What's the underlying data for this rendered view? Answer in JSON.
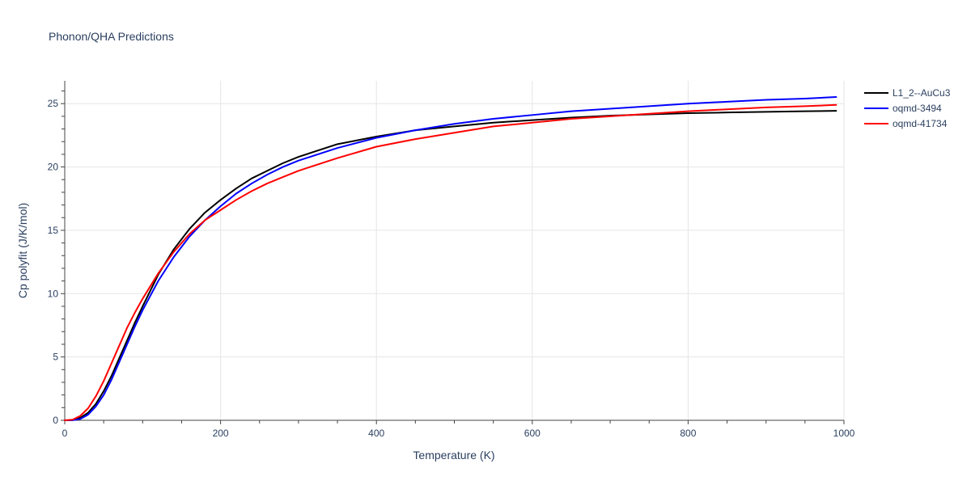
{
  "chart_data": {
    "type": "line",
    "title": "Phonon/QHA Predictions",
    "xlabel": "Temperature (K)",
    "ylabel": "Cp polyfit (J/K/mol)",
    "xlim": [
      0,
      1000
    ],
    "ylim": [
      0,
      26.8
    ],
    "xticks": [
      0,
      200,
      400,
      600,
      800,
      1000
    ],
    "yticks": [
      0,
      5,
      10,
      15,
      20,
      25
    ],
    "grid": true,
    "legend_position": "top-right",
    "series": [
      {
        "name": "L1_2--AuCu3",
        "color": "#000000",
        "x": [
          0,
          10,
          20,
          30,
          40,
          50,
          60,
          70,
          80,
          90,
          100,
          120,
          140,
          160,
          180,
          200,
          220,
          240,
          260,
          280,
          300,
          350,
          400,
          450,
          500,
          550,
          600,
          650,
          700,
          750,
          800,
          850,
          900,
          950,
          990
        ],
        "y": [
          0,
          0.02,
          0.2,
          0.6,
          1.3,
          2.3,
          3.5,
          4.9,
          6.3,
          7.7,
          9.0,
          11.5,
          13.5,
          15.1,
          16.4,
          17.4,
          18.3,
          19.1,
          19.7,
          20.3,
          20.8,
          21.8,
          22.4,
          22.9,
          23.2,
          23.5,
          23.7,
          23.9,
          24.05,
          24.15,
          24.25,
          24.3,
          24.35,
          24.4,
          24.43
        ]
      },
      {
        "name": "oqmd-3494",
        "color": "#0000ff",
        "x": [
          0,
          10,
          20,
          30,
          40,
          50,
          60,
          70,
          80,
          90,
          100,
          120,
          140,
          160,
          180,
          200,
          220,
          240,
          260,
          280,
          300,
          350,
          400,
          450,
          500,
          550,
          600,
          650,
          700,
          750,
          800,
          850,
          900,
          950,
          990
        ],
        "y": [
          0,
          0.01,
          0.1,
          0.45,
          1.1,
          2.0,
          3.2,
          4.6,
          6.0,
          7.4,
          8.7,
          11.0,
          12.9,
          14.5,
          15.8,
          16.9,
          17.9,
          18.7,
          19.4,
          20.0,
          20.5,
          21.5,
          22.3,
          22.9,
          23.4,
          23.8,
          24.1,
          24.4,
          24.6,
          24.8,
          25.0,
          25.15,
          25.3,
          25.4,
          25.52
        ]
      },
      {
        "name": "oqmd-41734",
        "color": "#ff0000",
        "x": [
          0,
          10,
          20,
          30,
          40,
          50,
          60,
          70,
          80,
          90,
          100,
          120,
          140,
          160,
          180,
          200,
          220,
          240,
          260,
          280,
          300,
          350,
          400,
          450,
          500,
          550,
          600,
          650,
          700,
          750,
          800,
          850,
          900,
          950,
          990
        ],
        "y": [
          0,
          0.05,
          0.35,
          0.95,
          1.9,
          3.1,
          4.5,
          5.9,
          7.3,
          8.5,
          9.6,
          11.6,
          13.3,
          14.7,
          15.8,
          16.6,
          17.4,
          18.1,
          18.7,
          19.2,
          19.7,
          20.7,
          21.6,
          22.2,
          22.7,
          23.2,
          23.5,
          23.8,
          24.0,
          24.2,
          24.4,
          24.55,
          24.7,
          24.8,
          24.9
        ]
      }
    ]
  }
}
